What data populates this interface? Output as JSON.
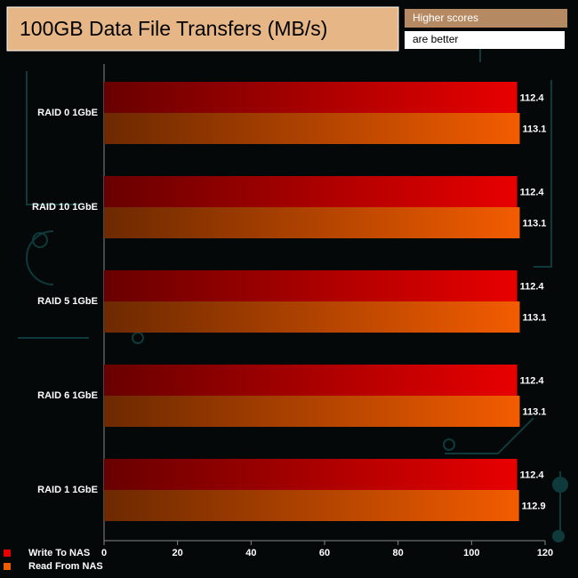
{
  "chart_data": {
    "type": "hbar",
    "title": "100GB Data File Transfers (MB/s)",
    "annotations": [
      "Higher scores",
      "are better"
    ],
    "categories": [
      "RAID 0 1GbE",
      "RAID 10 1GbE",
      "RAID 5 1GbE",
      "RAID 6 1GbE",
      "RAID 1 1GbE"
    ],
    "series": [
      {
        "name": "Write To NAS",
        "color": "#e80000",
        "values": [
          112.4,
          112.4,
          112.4,
          112.4,
          112.4
        ]
      },
      {
        "name": "Read From NAS",
        "color": "#f25c00",
        "values": [
          113.1,
          113.1,
          113.1,
          113.1,
          112.9
        ]
      }
    ],
    "xlim": [
      0,
      120
    ],
    "xticks": [
      0,
      20,
      40,
      60,
      80,
      100,
      120
    ]
  }
}
